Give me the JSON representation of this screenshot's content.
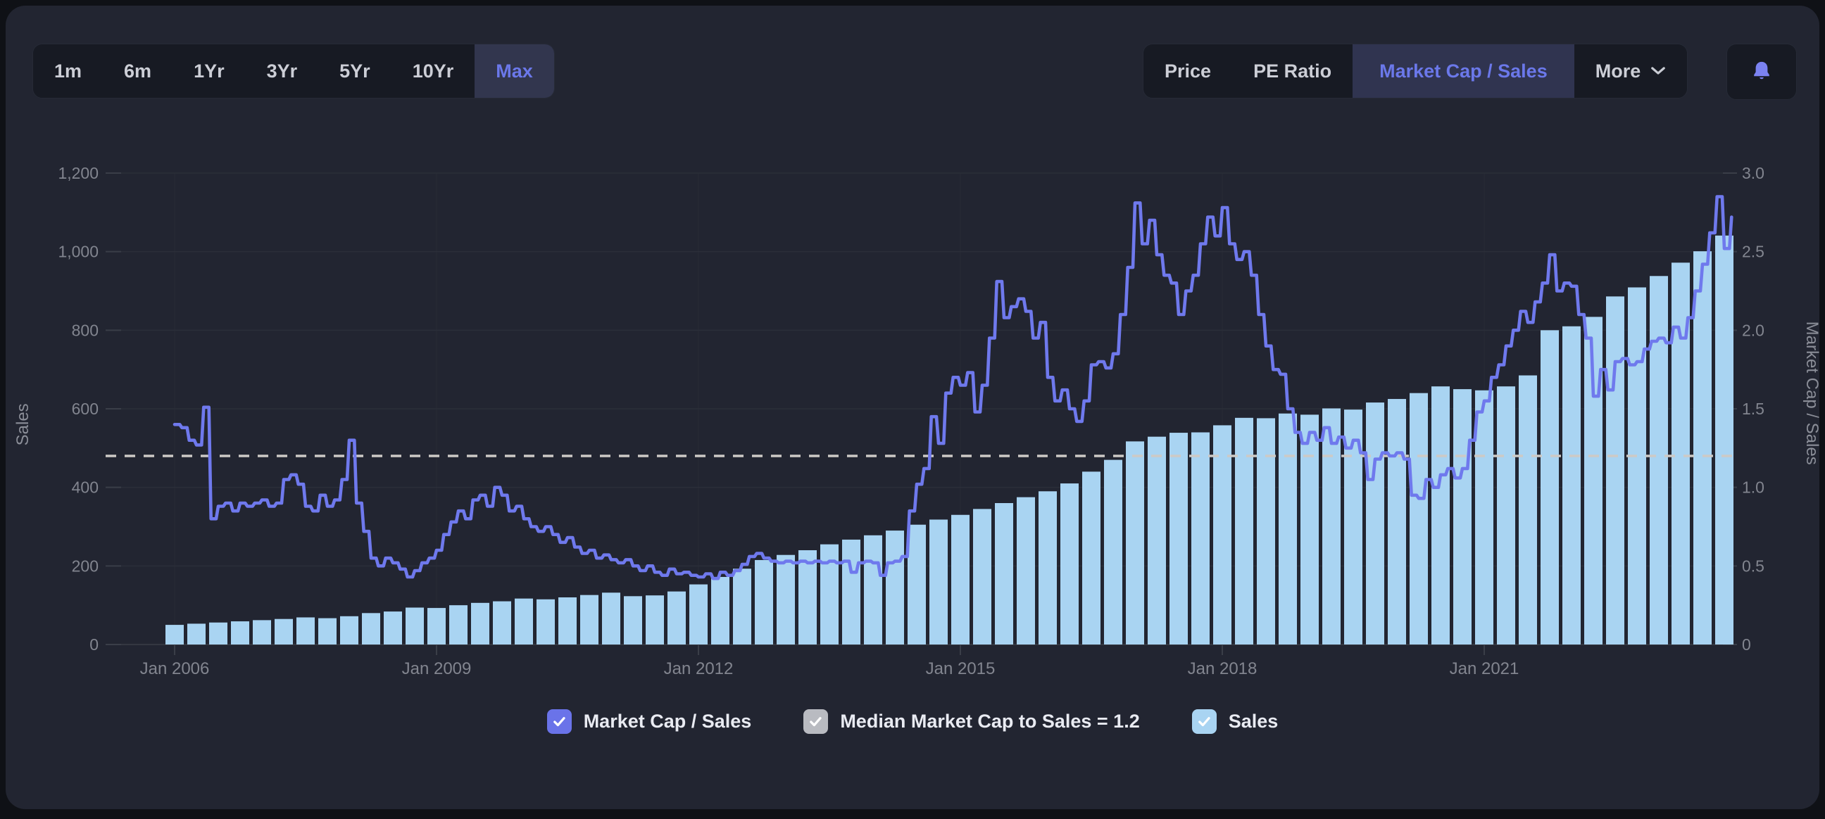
{
  "toolbar": {
    "ranges": [
      "1m",
      "6m",
      "1Yr",
      "3Yr",
      "5Yr",
      "10Yr",
      "Max"
    ],
    "selected_range": "Max",
    "metrics": [
      "Price",
      "PE Ratio",
      "Market Cap / Sales"
    ],
    "selected_metric": "Market Cap / Sales",
    "more_label": "More",
    "icons": {
      "more_chevron": "chevron-down-icon",
      "alerts": "bell-icon"
    },
    "colors": {
      "accent": "#6b78ea",
      "bell": "#7b82f1"
    }
  },
  "chart_data": {
    "type": "bar+line combo",
    "title": "",
    "left_axis": {
      "label": "Sales",
      "ticks": [
        "0",
        "200",
        "400",
        "600",
        "800",
        "1,000",
        "1,200"
      ],
      "min": 0,
      "max": 1200
    },
    "right_axis": {
      "label": "Market Cap / Sales",
      "ticks": [
        "0",
        "0.5",
        "1.0",
        "1.5",
        "2.0",
        "2.5",
        "3.0"
      ],
      "min": 0,
      "max": 3.0
    },
    "x_axis": {
      "labels": [
        "Jan 2006",
        "Jan 2009",
        "Jan 2012",
        "Jan 2015",
        "Jan 2018",
        "Jan 2021"
      ],
      "start_year": 2006,
      "years_per_label": 3,
      "grid": true
    },
    "median_line": {
      "value": 1.2,
      "axis": "right",
      "style": "dashed",
      "color": "#cdcac6"
    },
    "series": [
      {
        "name": "Sales",
        "type": "bar",
        "axis": "left",
        "freq": "quarterly",
        "start": "2006-Q1",
        "color": "#a9d4f2",
        "values": [
          50,
          53,
          56,
          59,
          62,
          65,
          69,
          67,
          72,
          80,
          84,
          94,
          93,
          100,
          106,
          110,
          117,
          115,
          120,
          126,
          132,
          123,
          125,
          135,
          153,
          172,
          193,
          215,
          228,
          240,
          255,
          267,
          278,
          290,
          305,
          318,
          330,
          345,
          360,
          375,
          390,
          410,
          440,
          470,
          517,
          529,
          539,
          540,
          558,
          577,
          576,
          588,
          585,
          601,
          598,
          616,
          625,
          640,
          657,
          650,
          647,
          657,
          685,
          800,
          810,
          834,
          886,
          909,
          938,
          972,
          1001,
          1041
        ]
      },
      {
        "name": "Market Cap / Sales",
        "type": "line",
        "axis": "right",
        "freq": "monthly",
        "start": "2006-01",
        "color": "#6f79ed",
        "values": [
          1.4,
          1.38,
          1.3,
          1.27,
          1.51,
          0.8,
          0.88,
          0.9,
          0.85,
          0.9,
          0.88,
          0.9,
          0.92,
          0.88,
          0.9,
          1.05,
          1.08,
          1.02,
          0.88,
          0.85,
          0.95,
          0.88,
          0.92,
          1.05,
          1.3,
          0.9,
          0.72,
          0.55,
          0.5,
          0.55,
          0.52,
          0.48,
          0.43,
          0.47,
          0.52,
          0.55,
          0.6,
          0.7,
          0.78,
          0.85,
          0.8,
          0.92,
          0.95,
          0.88,
          1.0,
          0.95,
          0.85,
          0.88,
          0.8,
          0.75,
          0.72,
          0.75,
          0.7,
          0.65,
          0.68,
          0.62,
          0.58,
          0.6,
          0.55,
          0.57,
          0.54,
          0.52,
          0.54,
          0.5,
          0.47,
          0.5,
          0.46,
          0.44,
          0.48,
          0.45,
          0.46,
          0.44,
          0.43,
          0.45,
          0.42,
          0.46,
          0.44,
          0.47,
          0.51,
          0.56,
          0.58,
          0.55,
          0.53,
          0.52,
          0.53,
          0.52,
          0.53,
          0.52,
          0.53,
          0.52,
          0.53,
          0.52,
          0.53,
          0.46,
          0.52,
          0.53,
          0.52,
          0.44,
          0.52,
          0.53,
          0.56,
          0.85,
          1.02,
          1.12,
          1.45,
          1.28,
          1.6,
          1.7,
          1.65,
          1.73,
          1.48,
          1.65,
          1.95,
          2.31,
          2.08,
          2.15,
          2.2,
          2.12,
          1.95,
          2.05,
          1.7,
          1.55,
          1.62,
          1.5,
          1.42,
          1.55,
          1.78,
          1.8,
          1.76,
          1.85,
          2.1,
          2.4,
          2.81,
          2.55,
          2.7,
          2.48,
          2.35,
          2.3,
          2.1,
          2.25,
          2.35,
          2.55,
          2.72,
          2.6,
          2.78,
          2.55,
          2.45,
          2.5,
          2.35,
          2.1,
          1.9,
          1.75,
          1.72,
          1.5,
          1.35,
          1.28,
          1.35,
          1.3,
          1.38,
          1.28,
          1.32,
          1.25,
          1.3,
          1.22,
          1.05,
          1.18,
          1.22,
          1.2,
          1.22,
          1.18,
          0.95,
          0.93,
          1.05,
          1.0,
          1.08,
          1.12,
          1.06,
          1.12,
          1.3,
          1.48,
          1.55,
          1.7,
          1.78,
          1.9,
          2.0,
          2.12,
          2.05,
          2.18,
          2.3,
          2.48,
          2.25,
          2.3,
          2.28,
          2.1,
          1.95,
          1.58,
          1.75,
          1.62,
          1.8,
          1.82,
          1.78,
          1.8,
          1.88,
          1.93,
          1.95,
          1.92,
          2.02,
          1.95,
          2.08,
          2.25,
          2.42,
          2.62,
          2.85,
          2.52,
          2.72
        ]
      }
    ]
  },
  "legend": {
    "items": [
      {
        "label": "Market Cap / Sales",
        "checked": true,
        "box_color": "#6a73e9"
      },
      {
        "label": "Median Market Cap to Sales = 1.2",
        "checked": true,
        "box_color": "#b9bbc1"
      },
      {
        "label": "Sales",
        "checked": true,
        "box_color": "#a9d4f2"
      }
    ]
  }
}
